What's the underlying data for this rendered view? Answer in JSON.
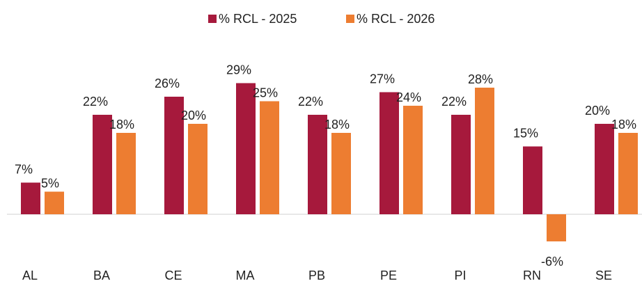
{
  "chart_data": {
    "type": "bar",
    "categories": [
      "AL",
      "BA",
      "CE",
      "MA",
      "PB",
      "PE",
      "PI",
      "RN",
      "SE"
    ],
    "series": [
      {
        "name": "% RCL - 2025",
        "color": "#a6193c",
        "values": [
          7,
          22,
          26,
          29,
          22,
          27,
          22,
          15,
          20
        ],
        "value_labels": [
          "7%",
          "22%",
          "26%",
          "29%",
          "22%",
          "27%",
          "22%",
          "15%",
          "20%"
        ]
      },
      {
        "name": "% RCL - 2026",
        "color": "#ed7d31",
        "values": [
          5,
          18,
          20,
          25,
          18,
          24,
          28,
          -6,
          18
        ],
        "value_labels": [
          "5%",
          "18%",
          "20%",
          "25%",
          "18%",
          "24%",
          "28%",
          "-6%",
          "18%"
        ]
      }
    ],
    "legend": "top"
  }
}
